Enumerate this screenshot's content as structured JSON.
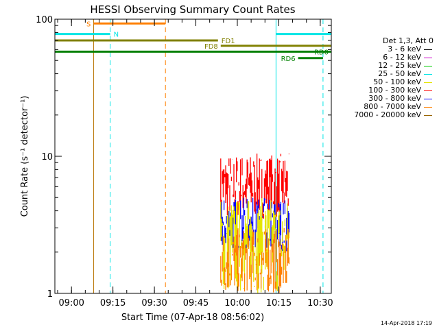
{
  "chart_data": {
    "type": "line",
    "title": "HESSI Observing Summary Count Rates",
    "xlabel": "Start Time (07-Apr-18 08:56:02)",
    "ylabel": "Count Rate (s⁻¹ detector⁻¹)",
    "yscale": "log",
    "xlim": [
      "08:54",
      "10:34"
    ],
    "ylim": [
      1,
      100
    ],
    "x_ticks": [
      "09:00",
      "09:15",
      "09:30",
      "09:45",
      "10:00",
      "10:15",
      "10:30"
    ],
    "y_ticks": [
      1,
      10,
      100
    ],
    "legend_title": "Det 1,3, Att 0",
    "legend": [
      {
        "label": "3 - 6 keV",
        "color": "#000000"
      },
      {
        "label": "6 - 12 keV",
        "color": "#cc00cc"
      },
      {
        "label": "12 - 25 keV",
        "color": "#00cc00"
      },
      {
        "label": "25 - 50 keV",
        "color": "#00e5e5"
      },
      {
        "label": "50 - 100 keV",
        "color": "#e5e500"
      },
      {
        "label": "100 - 300 keV",
        "color": "#ff0000"
      },
      {
        "label": "300 - 800 keV",
        "color": "#0000ff"
      },
      {
        "label": "800 - 7000 keV",
        "color": "#ff8000"
      },
      {
        "label": "7000 - 20000 keV",
        "color": "#996600"
      }
    ],
    "series": [
      {
        "name": "100 - 300 keV",
        "color": "#ff0000",
        "x_range": [
          "09:54",
          "10:19"
        ],
        "y_range": [
          3.5,
          10.5
        ]
      },
      {
        "name": "300 - 800 keV",
        "color": "#0000ff",
        "x_range": [
          "09:54",
          "10:19"
        ],
        "y_range": [
          2.0,
          5.0
        ]
      },
      {
        "name": "50 - 100 keV",
        "color": "#e5e500",
        "x_range": [
          "09:54",
          "10:19"
        ],
        "y_range": [
          1.0,
          5.0
        ]
      },
      {
        "name": "800 - 7000 keV",
        "color": "#ff8000",
        "x_range": [
          "09:54",
          "10:19"
        ],
        "y_range": [
          1.0,
          3.0
        ]
      }
    ],
    "flag_bars": [
      {
        "label": "S",
        "color": "#ff8000",
        "x_range": [
          "09:08",
          "09:34"
        ],
        "y": 93,
        "label_side": "left"
      },
      {
        "label": "N",
        "color": "#00e5e5",
        "x_range": [
          "08:54",
          "09:14"
        ],
        "y": 78,
        "label_side": "right"
      },
      {
        "label": "N",
        "color": "#00e5e5",
        "x_range": [
          "10:14",
          "10:34"
        ],
        "y": 78,
        "label_side": "none"
      },
      {
        "label": "FD1",
        "color": "#808000",
        "x_range": [
          "08:54",
          "09:53"
        ],
        "y": 70,
        "label_side": "right"
      },
      {
        "label": "FD8",
        "color": "#808000",
        "x_range": [
          "09:54",
          "10:34"
        ],
        "y": 64,
        "label_side": "left"
      },
      {
        "label": "RD0",
        "color": "#008000",
        "x_range": [
          "08:54",
          "10:34"
        ],
        "y": 58,
        "label_side": "right_inside"
      },
      {
        "label": "RD6",
        "color": "#008000",
        "x_range": [
          "10:22",
          "10:31"
        ],
        "y": 52,
        "label_side": "left"
      }
    ],
    "vertical_markers": [
      {
        "x": "08:54",
        "color": "#00e5e5",
        "dashed": false
      },
      {
        "x": "09:08",
        "color": "#b87300",
        "dashed": false
      },
      {
        "x": "09:14",
        "color": "#00e5e5",
        "dashed": true
      },
      {
        "x": "09:34",
        "color": "#ff8000",
        "dashed": true
      },
      {
        "x": "10:14",
        "color": "#00e5e5",
        "dashed": false
      },
      {
        "x": "10:31",
        "color": "#00e5e5",
        "dashed": true
      }
    ]
  },
  "footer": {
    "timestamp": "14-Apr-2018 17:19"
  }
}
